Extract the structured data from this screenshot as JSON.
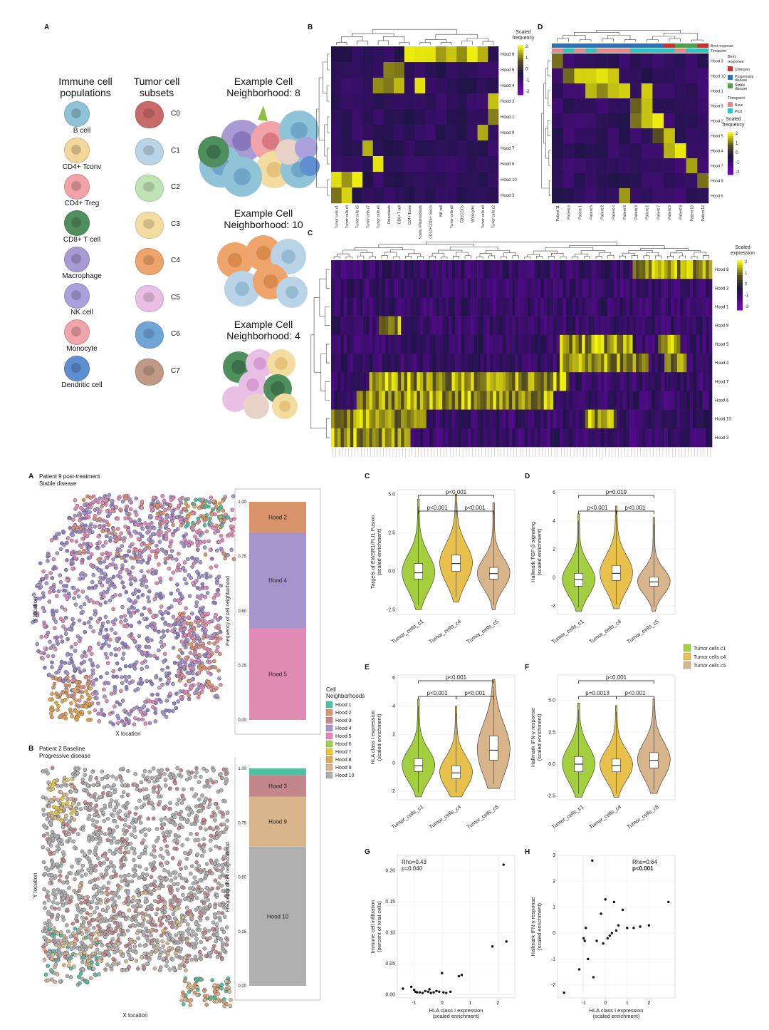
{
  "panels": {
    "top": {
      "label_A": "A",
      "label_B": "B",
      "label_C": "C",
      "label_D": "D",
      "immune_title": "Immune cell\npopulations",
      "tumor_title": "Tumor cell\nsubsets",
      "immune_cells": [
        {
          "name": "B cell",
          "color": "#8fc3d8"
        },
        {
          "name": "CD4+ Tconv",
          "color": "#f5d79a"
        },
        {
          "name": "CD4+ Treg",
          "color": "#f2a3a8"
        },
        {
          "name": "CD8+ T cell",
          "color": "#4f8f5e"
        },
        {
          "name": "Macrophage",
          "color": "#a89bd3"
        },
        {
          "name": "NK cell",
          "color": "#a9a0dc"
        },
        {
          "name": "Monocyte",
          "color": "#f0a5ab"
        },
        {
          "name": "Dendritic cell",
          "color": "#5e8fd1"
        }
      ],
      "tumor_cells": [
        {
          "name": "C0",
          "color": "#c96a6a"
        },
        {
          "name": "C1",
          "color": "#b9d4e6"
        },
        {
          "name": "C2",
          "color": "#bfe3b5"
        },
        {
          "name": "C3",
          "color": "#f3dca0"
        },
        {
          "name": "C4",
          "color": "#eea46a"
        },
        {
          "name": "C5",
          "color": "#e9bfe6"
        },
        {
          "name": "C6",
          "color": "#6fa6d6"
        },
        {
          "name": "C7",
          "color": "#c09a86"
        }
      ],
      "example1": "Example Cell\nNeighborhood: 8",
      "example2": "Example Cell\nNeighborhood: 10",
      "example3": "Example Cell\nNeighborhood: 4",
      "B_legend_title": "Scaled\nfrequency",
      "B_rows": [
        "Hood 8",
        "Hood 5",
        "Hood 4",
        "Hood 2",
        "Hood 1",
        "Hood 9",
        "Hood 7",
        "Hood 6",
        "Hood 10",
        "Hood 3"
      ],
      "B_cols": [
        "Tumor cells c1",
        "Tumor cells c4",
        "Tumor cells c5",
        "Tumor cells c7",
        "Tumor cells c6",
        "Osteoclasts",
        "CD8+ T cell",
        "CD4+ Tconv",
        "B cells / Plasmablasts",
        "CD14+CD16+ macro",
        "NK cell",
        "Tumor cells c6",
        "CD1C DCs",
        "Monocytes",
        "Tumor cells c0",
        "Tumor cells c2"
      ],
      "legend_ticks": [
        "2",
        "1",
        "0",
        "-1",
        "-2"
      ],
      "D_rows": [
        "Hood 3",
        "Hood 10",
        "Hood 1",
        "Hood 9",
        "Hood 2",
        "Hood 5",
        "Hood 4",
        "Hood 7",
        "Hood 8",
        "Hood 6"
      ],
      "D_cols": [
        "Patient 11",
        "Patient 6",
        "Patient 1",
        "Patient 5",
        "Patient 2",
        "Patient 4",
        "Patient 8",
        "Patient 3",
        "Patient 2",
        "Patient 7",
        "Patient 9",
        "Patient 9",
        "Patient 10",
        "Patient 12"
      ],
      "D_annot1": "Best response",
      "D_annot2": "Timepoint",
      "D_leg_best": "Best\nresponse",
      "D_leg_best_items": [
        "Unknown",
        "Progressive disease",
        "Stable disease"
      ],
      "D_leg_time": "Timepoint",
      "D_leg_time_items": [
        "Base",
        "Post"
      ],
      "D_leg_scaled": "Scaled\nfrequency",
      "C_legend_title": "Scaled\nexpression",
      "C_rows": [
        "Hood 8",
        "Hood 2",
        "Hood 1",
        "Hood 9",
        "Hood 5",
        "Hood 4",
        "Hood 7",
        "Hood 6",
        "Hood 10",
        "Hood 3"
      ]
    },
    "bottom": {
      "label_A": "A",
      "label_B": "B",
      "label_C": "C",
      "label_D": "D",
      "label_E": "E",
      "label_F": "F",
      "label_G": "G",
      "label_H": "H",
      "A_title": "Patient 9 post-treatment\nStable disease",
      "B_title": "Patient 2 Baseline\nProgressive disease",
      "x_location": "X location",
      "y_location": "Y location",
      "freq_label": "Frequency of cell neighborhood",
      "bar_ticks": [
        "1.00",
        "0.75",
        "0.50",
        "0.25",
        "0.00"
      ],
      "A_bar": [
        {
          "hood": "Hood 5",
          "frac": 0.42,
          "color": "#e08bb3"
        },
        {
          "hood": "Hood 4",
          "frac": 0.44,
          "color": "#a594cc"
        },
        {
          "hood": "Hood 2",
          "frac": 0.14,
          "color": "#d9946b"
        }
      ],
      "B_bar": [
        {
          "hood": "Hood 10",
          "frac": 0.64,
          "color": "#b0b0b0"
        },
        {
          "hood": "Hood 9",
          "frac": 0.23,
          "color": "#d9b58c"
        },
        {
          "hood": "Hood 3",
          "frac": 0.1,
          "color": "#c4868d"
        },
        {
          "hood": "",
          "frac": 0.03,
          "color": "#4fc1a3"
        }
      ],
      "hood_legend_title": "Cell\nNeighborhoods",
      "hood_legend": [
        {
          "name": "Hood 1",
          "color": "#4fc1a3"
        },
        {
          "name": "Hood 2",
          "color": "#d9946b"
        },
        {
          "name": "Hood 3",
          "color": "#c4868d"
        },
        {
          "name": "Hood 4",
          "color": "#a594cc"
        },
        {
          "name": "Hood 5",
          "color": "#e08bb3"
        },
        {
          "name": "Hood 6",
          "color": "#9bd14b"
        },
        {
          "name": "Hood 7",
          "color": "#e6c83a"
        },
        {
          "name": "Hood 8",
          "color": "#e0a84f"
        },
        {
          "name": "Hood 9",
          "color": "#d9b58c"
        },
        {
          "name": "Hood 10",
          "color": "#b0b0b0"
        }
      ],
      "tumor_legend": [
        {
          "name": "Tumor cells c1",
          "color": "#a3cf3f"
        },
        {
          "name": "Tumor cells c4",
          "color": "#e8c04c"
        },
        {
          "name": "Tumor cells c5",
          "color": "#d8b48a"
        }
      ]
    }
  },
  "chart_data": [
    {
      "type": "violin",
      "panel": "C",
      "ylabel": "Targets of EWSR1/FLI1 Fusion\n(scaled enrichment)",
      "categories": [
        "Tumor_cells_c1",
        "Tumor_cells_c4",
        "Tumor_cells_c5"
      ],
      "medians": [
        -0.1,
        0.5,
        -0.15
      ],
      "q1": [
        -0.5,
        0.0,
        -0.5
      ],
      "q3": [
        0.5,
        1.05,
        0.25
      ],
      "ylim": [
        -2.8,
        5.3
      ],
      "yticks": [
        "5.0",
        "2.5",
        "0.0",
        "-2.5"
      ],
      "pvalues": [
        "p<0.001",
        "p<0.001",
        "p<0.001"
      ]
    },
    {
      "type": "violin",
      "panel": "D",
      "ylabel": "Hallmark TGF-β signaling\n(scaled enrichment)",
      "categories": [
        "Tumor_cells_c1",
        "Tumor_cells_c4",
        "Tumor_cells_c5"
      ],
      "medians": [
        -0.15,
        0.3,
        -0.3
      ],
      "q1": [
        -0.6,
        -0.2,
        -0.6
      ],
      "q3": [
        0.3,
        0.85,
        0.05
      ],
      "ylim": [
        -2.6,
        6.2
      ],
      "yticks": [
        "6",
        "4",
        "2",
        "0",
        "-2"
      ],
      "pvalues": [
        "p=0.019",
        "p<0.001",
        "p<0.001"
      ]
    },
    {
      "type": "violin",
      "panel": "E",
      "ylabel": "HLA class I expression\n(scaled enrichment)",
      "categories": [
        "Tumor_cells_c1",
        "Tumor_cells_c4",
        "Tumor_cells_c5"
      ],
      "medians": [
        -0.2,
        -0.7,
        0.9
      ],
      "q1": [
        -0.6,
        -1.1,
        0.2
      ],
      "q3": [
        0.3,
        -0.2,
        1.9
      ],
      "ylim": [
        -2.6,
        6.2
      ],
      "yticks": [
        "6",
        "4",
        "2",
        "0",
        "-2"
      ],
      "pvalues": [
        "p<0.001",
        "p<0.001",
        "p<0.001"
      ]
    },
    {
      "type": "violin",
      "panel": "F",
      "ylabel": "Hallmark IFN-γ response\n(scaled enrichment)",
      "categories": [
        "Tumor_cells_c1",
        "Tumor_cells_c4",
        "Tumor_cells_c5"
      ],
      "medians": [
        0.0,
        -0.1,
        0.3
      ],
      "q1": [
        -0.6,
        -0.6,
        -0.3
      ],
      "q3": [
        0.6,
        0.4,
        0.9
      ],
      "ylim": [
        -2.8,
        7.0
      ],
      "yticks": [
        "5.0",
        "2.5",
        "0.0",
        "-2.5"
      ],
      "pvalues": [
        "p<0.001",
        "p=0.0013",
        "p<0.001"
      ]
    },
    {
      "type": "scatter",
      "panel": "G",
      "xlabel": "HLA class I expression\n(scaled enrichment)",
      "ylabel": "Immune cell infiltration\n(percent of total cells)",
      "annotation": [
        "Rho=0.43",
        "p=0.040"
      ],
      "xlim": [
        -1.6,
        2.6
      ],
      "ylim": [
        -0.005,
        0.225
      ],
      "xticks": [
        "-1",
        "0",
        "1",
        "2"
      ],
      "yticks": [
        "0.20",
        "0.15",
        "0.10",
        "0.05",
        "0.00"
      ],
      "x": [
        -1.4,
        -1.1,
        -1.0,
        -0.95,
        -0.8,
        -0.6,
        -0.5,
        -0.45,
        -0.4,
        -0.3,
        -0.2,
        -0.1,
        0.0,
        0.05,
        0.15,
        0.3,
        0.6,
        0.7,
        1.8,
        2.2,
        2.3,
        -0.9,
        -0.7
      ],
      "y": [
        0.01,
        0.013,
        0.008,
        0.005,
        0.004,
        0.006,
        0.005,
        0.009,
        0.003,
        0.004,
        0.006,
        0.005,
        0.035,
        0.004,
        0.003,
        0.005,
        0.03,
        0.032,
        0.078,
        0.21,
        0.086,
        0.004,
        0.003
      ]
    },
    {
      "type": "scatter",
      "panel": "H",
      "xlabel": "HLA class I expression\n(scaled enrichment)",
      "ylabel": "Hallmark IFN-γ response\n(scaled enrichment)",
      "annotation": [
        "Rho=0.64",
        "p<0.001"
      ],
      "xlim": [
        -2.2,
        3.2
      ],
      "ylim": [
        -2.5,
        3.0
      ],
      "xticks": [
        "-1",
        "0",
        "1",
        "2"
      ],
      "yticks": [
        "3",
        "2",
        "1",
        "0",
        "-1",
        "-2"
      ],
      "x": [
        -1.9,
        -1.2,
        -1.0,
        -0.95,
        -0.9,
        -0.8,
        -0.6,
        -0.55,
        -0.4,
        -0.2,
        -0.1,
        0.0,
        0.1,
        0.2,
        0.3,
        0.4,
        0.5,
        0.6,
        0.8,
        1.0,
        1.3,
        1.6,
        2.0,
        2.9
      ],
      "y": [
        -2.3,
        -1.4,
        -0.2,
        -0.3,
        0.2,
        -1.0,
        2.8,
        -1.7,
        -0.3,
        0.75,
        -0.4,
        1.3,
        -0.2,
        -0.1,
        0.0,
        1.2,
        0.1,
        0.3,
        0.9,
        0.2,
        0.2,
        0.25,
        0.3,
        1.2
      ]
    }
  ]
}
